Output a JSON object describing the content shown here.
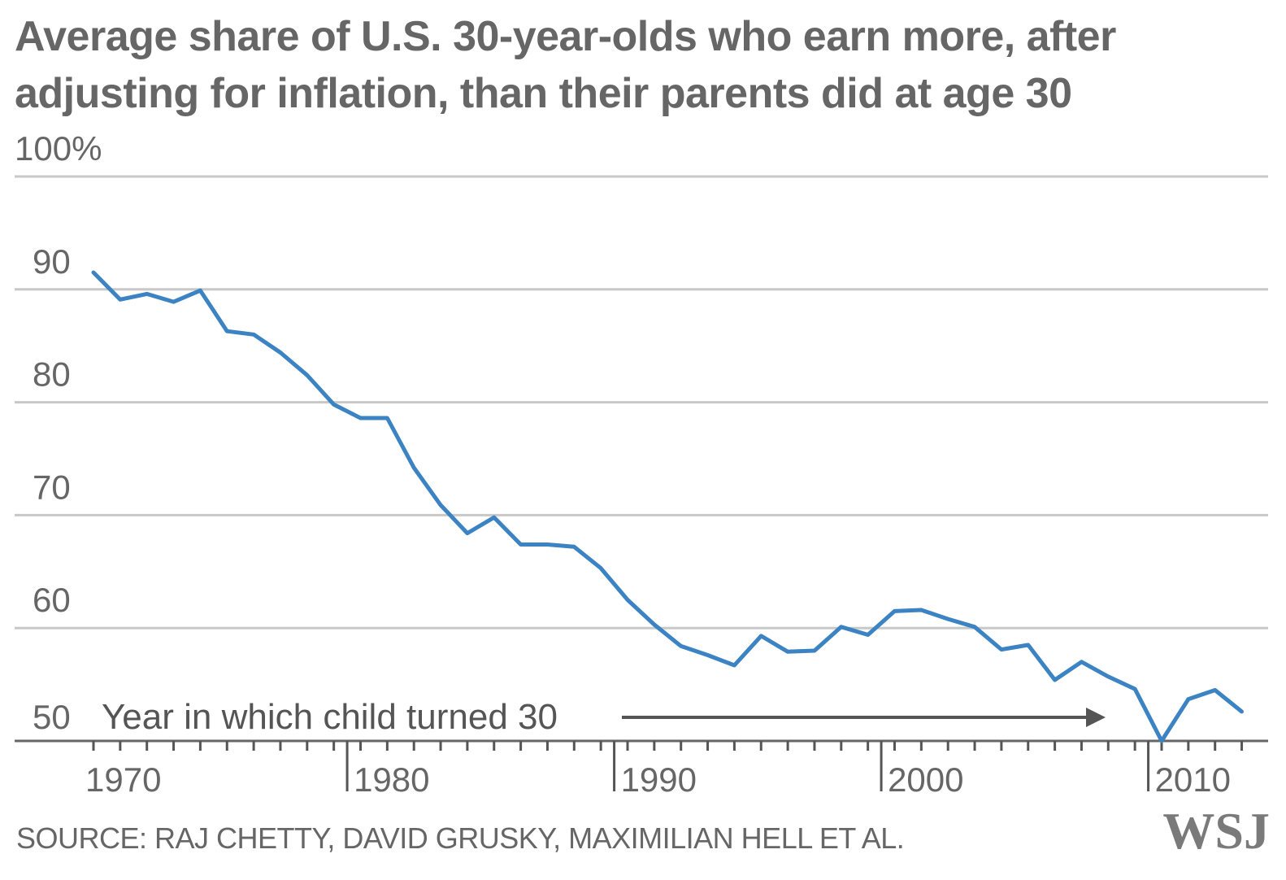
{
  "chart_data": {
    "type": "line",
    "title": "Average share of U.S. 30-year-olds who earn more, after adjusting for inflation, than their parents did at age 30",
    "y_ticks": [
      "100%",
      "90",
      "80",
      "70",
      "60",
      "50"
    ],
    "y_tick_values": [
      100,
      90,
      80,
      70,
      60,
      50
    ],
    "x_ticks": [
      "1970",
      "1980",
      "1990",
      "2000",
      "2010"
    ],
    "x_major_years": [
      1970,
      1980,
      1990,
      2000,
      2010
    ],
    "annotation": "Year in which child turned 30",
    "ylim": [
      50,
      100
    ],
    "xlim": [
      1968,
      2015
    ],
    "grid": true,
    "line_color": "#3b83c2",
    "series": [
      {
        "x": [
          1970,
          1971,
          1972,
          1973,
          1974,
          1975,
          1976,
          1977,
          1978,
          1979,
          1980,
          1981,
          1982,
          1983,
          1984,
          1985,
          1986,
          1987,
          1988,
          1989,
          1990,
          1991,
          1992,
          1993,
          1994,
          1995,
          1996,
          1997,
          1998,
          1999,
          2000,
          2001,
          2002,
          2003,
          2004,
          2005,
          2006,
          2007,
          2008,
          2009,
          2010,
          2011,
          2012,
          2013
        ],
        "values": [
          91.5,
          89.1,
          89.6,
          88.9,
          89.9,
          86.3,
          86.0,
          84.4,
          82.4,
          79.8,
          78.6,
          78.6,
          74.2,
          70.9,
          68.4,
          69.8,
          67.4,
          67.4,
          67.2,
          65.3,
          62.5,
          60.3,
          58.4,
          57.6,
          56.7,
          59.3,
          57.9,
          58.0,
          60.1,
          59.4,
          61.5,
          61.6,
          60.8,
          60.1,
          58.1,
          58.5,
          55.4,
          57.0,
          55.7,
          54.6,
          50.0,
          53.7,
          54.5,
          52.6
        ]
      }
    ]
  },
  "source": "SOURCE:  RAJ CHETTY, DAVID GRUSKY, MAXIMILIAN HELL ET AL.",
  "logo": "WSJ",
  "colors": {
    "text": "#666666",
    "grid": "#c8c8c8",
    "axis": "#555555",
    "line": "#3b83c2",
    "arrow": "#555555"
  }
}
